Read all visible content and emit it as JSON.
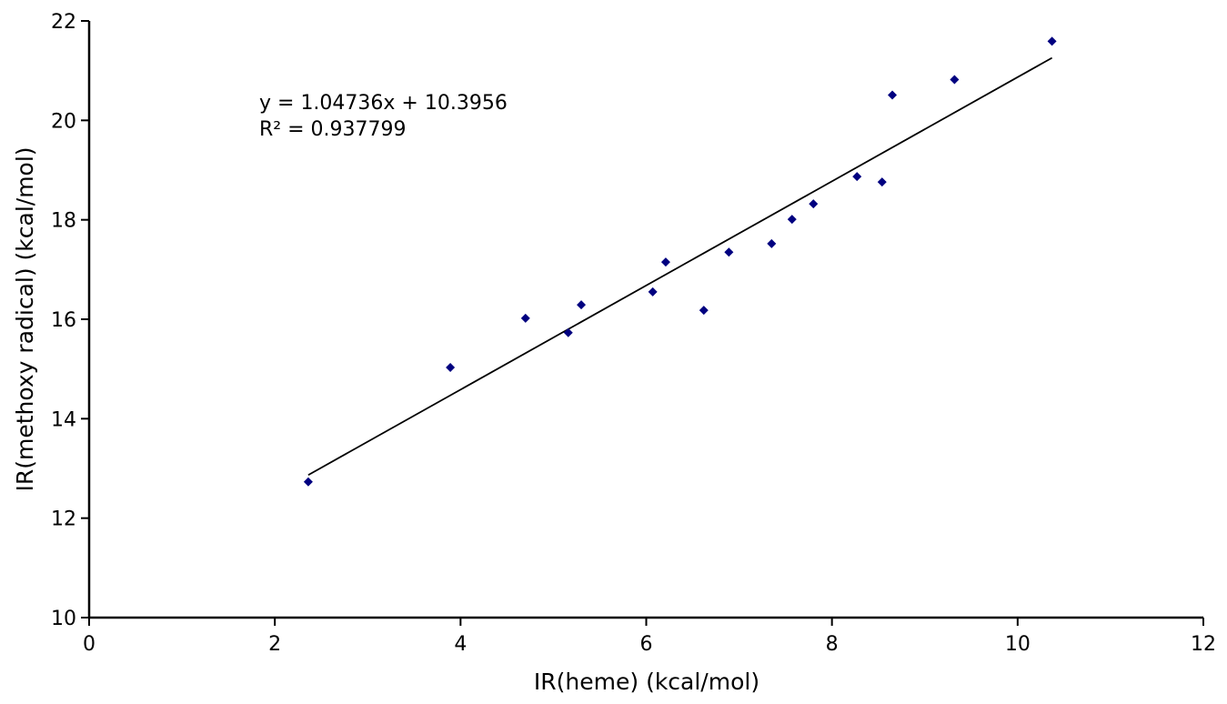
{
  "chart_data": {
    "type": "scatter",
    "xlabel": "IR(heme) (kcal/mol)",
    "ylabel": "IR(methoxy radical) (kcal/mol)",
    "xlim": [
      0,
      12
    ],
    "ylim": [
      10,
      22
    ],
    "xticks": [
      0,
      2,
      4,
      6,
      8,
      10,
      12
    ],
    "yticks": [
      10,
      12,
      14,
      16,
      18,
      20,
      22
    ],
    "grid": false,
    "marker_color": "#000080",
    "trendline_color": "#000000",
    "points": [
      {
        "x": 2.36,
        "y": 12.73
      },
      {
        "x": 3.89,
        "y": 15.03
      },
      {
        "x": 4.7,
        "y": 16.02
      },
      {
        "x": 5.16,
        "y": 15.73
      },
      {
        "x": 5.3,
        "y": 16.29
      },
      {
        "x": 6.07,
        "y": 16.55
      },
      {
        "x": 6.21,
        "y": 17.15
      },
      {
        "x": 6.62,
        "y": 16.18
      },
      {
        "x": 6.89,
        "y": 17.35
      },
      {
        "x": 7.35,
        "y": 17.52
      },
      {
        "x": 7.57,
        "y": 18.01
      },
      {
        "x": 7.8,
        "y": 18.32
      },
      {
        "x": 8.27,
        "y": 18.87
      },
      {
        "x": 8.54,
        "y": 18.76
      },
      {
        "x": 8.65,
        "y": 20.51
      },
      {
        "x": 9.32,
        "y": 20.82
      },
      {
        "x": 10.37,
        "y": 21.59
      }
    ],
    "trendline": {
      "slope": 1.04736,
      "intercept": 10.3956,
      "x_range": [
        2.36,
        10.37
      ]
    },
    "annotations": {
      "equation": "y = 1.04736x + 10.3956",
      "r_squared": "R² = 0.937799"
    }
  }
}
